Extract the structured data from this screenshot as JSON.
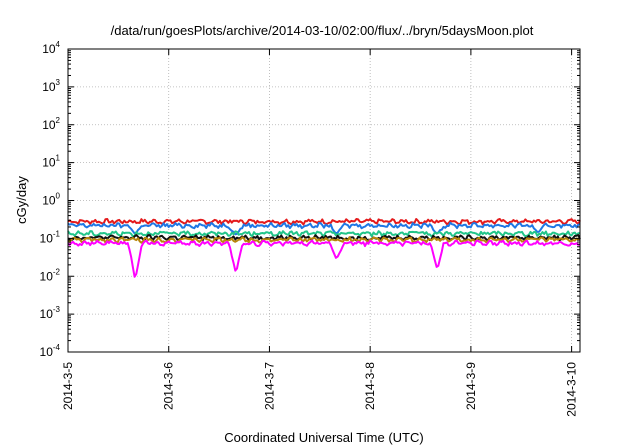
{
  "chart_data": {
    "type": "line",
    "title": "/data/run/goesPlots/archive/2014-03-10/02:00/flux/../bryn/5daysMoon.plot",
    "xlabel": "Coordinated Universal Time (UTC)",
    "ylabel": "cGy/day",
    "yscale": "log",
    "ylim": [
      0.0001,
      10000
    ],
    "y_ticks": [
      {
        "base": "10",
        "exp": "-4",
        "value": 0.0001
      },
      {
        "base": "10",
        "exp": "-3",
        "value": 0.001
      },
      {
        "base": "10",
        "exp": "-2",
        "value": 0.01
      },
      {
        "base": "10",
        "exp": "-1",
        "value": 0.1
      },
      {
        "base": "10",
        "exp": "0",
        "value": 1
      },
      {
        "base": "10",
        "exp": "1",
        "value": 10
      },
      {
        "base": "10",
        "exp": "2",
        "value": 100
      },
      {
        "base": "10",
        "exp": "3",
        "value": 1000
      },
      {
        "base": "10",
        "exp": "4",
        "value": 10000
      }
    ],
    "x_range": [
      "2014-03-05T00:00",
      "2014-03-10T02:00"
    ],
    "x_ticks": [
      "2014-3-5",
      "2014-3-6",
      "2014-3-7",
      "2014-3-8",
      "2014-3-9",
      "2014-3-10"
    ],
    "x_tick_dates": [
      "2014-03-05",
      "2014-03-06",
      "2014-03-07",
      "2014-03-08",
      "2014-03-09",
      "2014-03-10"
    ],
    "grid": true,
    "legend": "none",
    "series": [
      {
        "color": "#e41a1c",
        "baseline": 0.28,
        "dips": []
      },
      {
        "color": "#1f77e4",
        "baseline": 0.22,
        "dips": [
          {
            "x": "2014-03-05T16:00",
            "value": 0.13
          },
          {
            "x": "2014-03-06T16:00",
            "value": 0.12
          },
          {
            "x": "2014-03-07T16:00",
            "value": 0.13
          },
          {
            "x": "2014-03-08T16:00",
            "value": 0.13
          },
          {
            "x": "2014-03-09T16:00",
            "value": 0.14
          }
        ]
      },
      {
        "color": "#22c58a",
        "baseline": 0.135,
        "dips": []
      },
      {
        "color": "#111111",
        "baseline": 0.105,
        "dips": []
      },
      {
        "color": "#b8860b",
        "baseline": 0.092,
        "dips": []
      },
      {
        "color": "#ff00ff",
        "baseline": 0.075,
        "dips": [
          {
            "x": "2014-03-05T16:00",
            "value": 0.008
          },
          {
            "x": "2014-03-06T16:00",
            "value": 0.012
          },
          {
            "x": "2014-03-07T16:00",
            "value": 0.028
          },
          {
            "x": "2014-03-08T16:00",
            "value": 0.015
          }
        ]
      }
    ]
  }
}
